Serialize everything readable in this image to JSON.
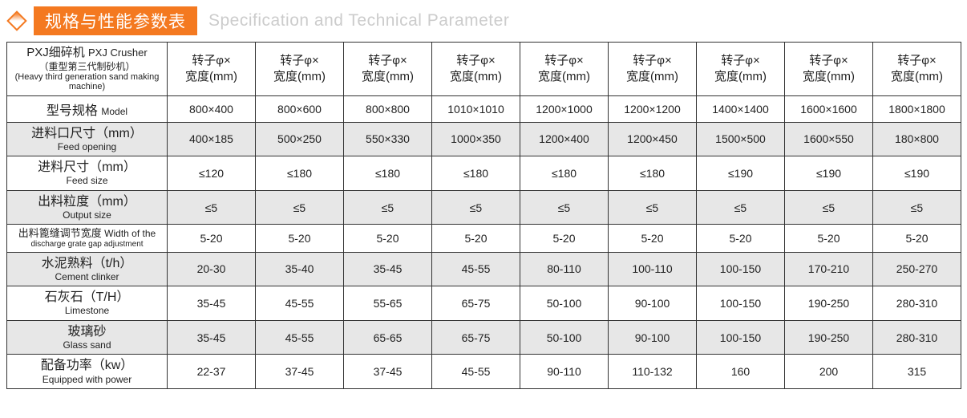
{
  "header": {
    "title_cn": "规格与性能参数表",
    "title_en": "Specification and Technical Parameter"
  },
  "table": {
    "topLeft": {
      "l1a": "PXJ细碎机",
      "l1b": "PXJ Crusher",
      "l2": "（重型第三代制砂机）",
      "l3": "(Heavy third generation sand making machine)"
    },
    "colHeader": {
      "cn": "转子φ×",
      "en": "宽度(mm)"
    },
    "rows": [
      {
        "shaded": false,
        "label_cn": "型号规格",
        "label_en_inline": "Model",
        "label_en": "",
        "type": "inline",
        "values": [
          "800×400",
          "800×600",
          "800×800",
          "1010×1010",
          "1200×1000",
          "1200×1200",
          "1400×1400",
          "1600×1600",
          "1800×1800"
        ]
      },
      {
        "shaded": true,
        "label_cn": "进料口尺寸（mm）",
        "label_en": "Feed opening",
        "type": "stack",
        "values": [
          "400×185",
          "500×250",
          "550×330",
          "1000×350",
          "1200×400",
          "1200×450",
          "1500×500",
          "1600×550",
          "180×800"
        ]
      },
      {
        "shaded": false,
        "label_cn": "进料尺寸（mm）",
        "label_en": "Feed size",
        "type": "stack",
        "values": [
          "≤120",
          "≤180",
          "≤180",
          "≤180",
          "≤180",
          "≤180",
          "≤190",
          "≤190",
          "≤190"
        ]
      },
      {
        "shaded": true,
        "label_cn": "出料粒度（mm）",
        "label_en": "Output size",
        "type": "stack",
        "values": [
          "≤5",
          "≤5",
          "≤5",
          "≤5",
          "≤5",
          "≤5",
          "≤5",
          "≤5",
          "≤5"
        ]
      },
      {
        "shaded": false,
        "label_cn": "出料篦缝调节宽度",
        "label_en_inline": "Width of the",
        "label_en": "discharge grate gap adjustment",
        "type": "mixed",
        "values": [
          "5-20",
          "5-20",
          "5-20",
          "5-20",
          "5-20",
          "5-20",
          "5-20",
          "5-20",
          "5-20"
        ]
      },
      {
        "shaded": true,
        "label_cn": "水泥熟料（t/h）",
        "label_en": "Cement clinker",
        "type": "stack",
        "values": [
          "20-30",
          "35-40",
          "35-45",
          "45-55",
          "80-110",
          "100-110",
          "100-150",
          "170-210",
          "250-270"
        ]
      },
      {
        "shaded": false,
        "label_cn": "石灰石（T/H）",
        "label_en": "Limestone",
        "type": "stack",
        "values": [
          "35-45",
          "45-55",
          "55-65",
          "65-75",
          "50-100",
          "90-100",
          "100-150",
          "190-250",
          "280-310"
        ]
      },
      {
        "shaded": true,
        "label_cn": "玻璃砂",
        "label_en": "Glass sand",
        "type": "stack",
        "values": [
          "35-45",
          "45-55",
          "65-65",
          "65-75",
          "50-100",
          "90-100",
          "100-150",
          "190-250",
          "280-310"
        ]
      },
      {
        "shaded": false,
        "label_cn": "配备功率（kw）",
        "label_en": "Equipped with power",
        "type": "stack",
        "values": [
          "22-37",
          "37-45",
          "37-45",
          "45-55",
          "90-110",
          "110-132",
          "160",
          "200",
          "315"
        ]
      }
    ],
    "numCols": 9,
    "colors": {
      "accent": "#f47920",
      "border": "#333333",
      "shade": "#e7e7e7",
      "header_en": "#cccccc"
    }
  }
}
